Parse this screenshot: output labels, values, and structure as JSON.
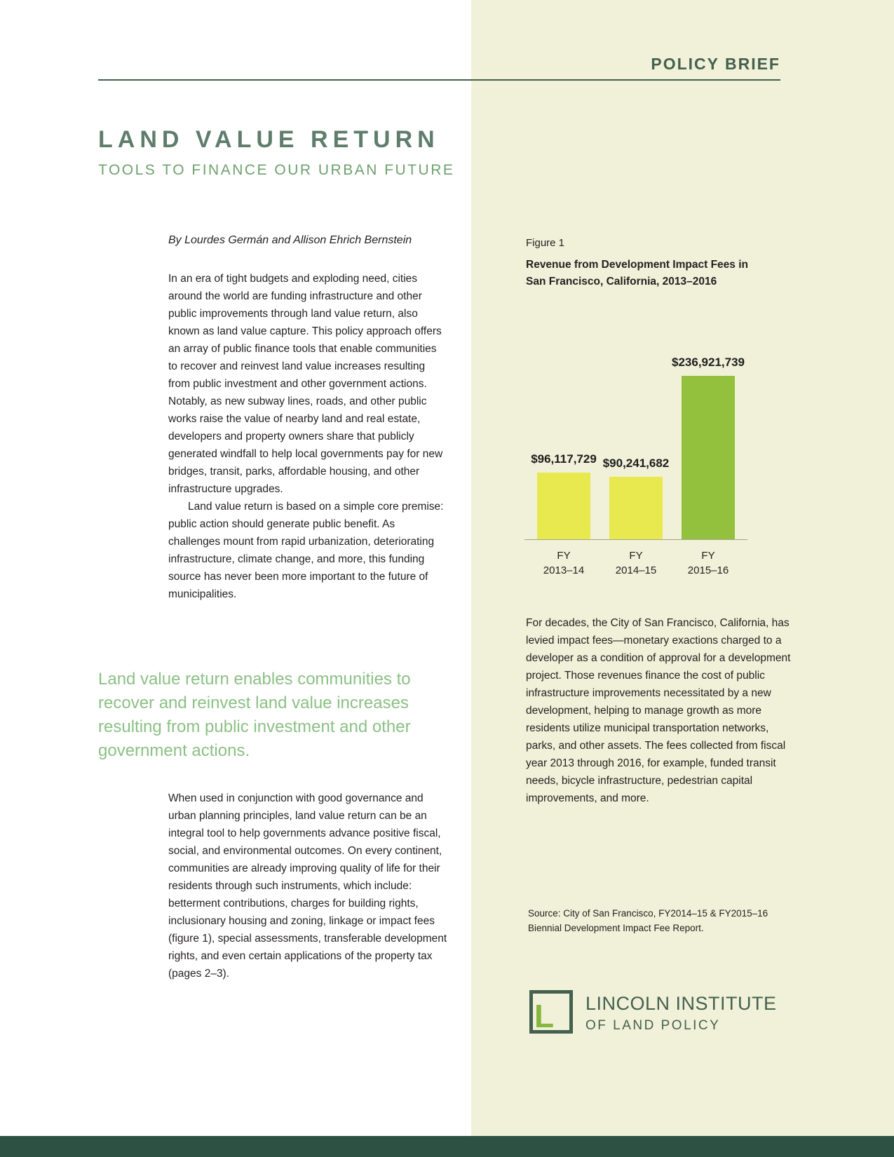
{
  "header": {
    "kicker": "POLICY BRIEF"
  },
  "title": {
    "main": "LAND VALUE RETURN",
    "subtitle": "TOOLS TO FINANCE OUR URBAN FUTURE"
  },
  "article": {
    "byline": "By Lourdes Germán and Allison Ehrich Bernstein",
    "para1": "In an era of tight budgets and exploding need, cities around the world are funding infrastructure and other public improvements through land value return, also known as land value capture. This policy approach offers an array of public finance tools that enable communities to recover and reinvest land value increases resulting from public investment and other government actions. Notably, as new subway lines, roads, and other public works raise the value of nearby land and real estate, developers and property owners share that publicly generated windfall to help local governments pay for new bridges, transit, parks, affordable housing, and other infrastructure upgrades.",
    "para2": "Land value return is based on a simple core premise: public action should generate public benefit. As challenges mount from rapid urbanization, deteriorating infrastructure, climate change, and more, this funding source has never been more important to the future of municipalities.",
    "pullquote": "Land value return enables communities to recover and reinvest land value increases resulting from public investment and other government actions.",
    "para3": "When used in conjunction with good governance and urban planning principles, land value return can be an integral tool to help governments advance positive fiscal, social, and environmental outcomes. On every continent, communities are already improving quality of life for their residents through such instruments, which include: betterment contributions, charges for building rights, inclusionary housing and zoning, linkage or impact fees (figure 1), special assessments, transferable development rights, and even certain applications of the property tax (pages 2–3)."
  },
  "figure": {
    "label": "Figure 1",
    "title": "Revenue from Development Impact Fees in San Francisco, California, 2013–2016",
    "body": "For decades, the City of San Francisco, California, has levied impact fees—monetary exactions charged to a developer as a condition of approval for a development project. Those revenues finance the cost of public infrastructure improvements necessitated by a new development, helping to manage growth as more residents utilize municipal transportation networks, parks, and other assets. The fees collected from fiscal year 2013 through 2016, for example, funded transit needs, bicycle infrastructure, pedestrian capital improvements, and more.",
    "source": "Source: City of San Francisco, FY2014–15 & FY2015–16 Biennial Development Impact Fee Report."
  },
  "chart_data": {
    "type": "bar",
    "title": "Revenue from Development Impact Fees in San Francisco, California, 2013–2016",
    "categories": [
      [
        "FY",
        "2013–14"
      ],
      [
        "FY",
        "2014–15"
      ],
      [
        "FY",
        "2015–16"
      ]
    ],
    "values": [
      96117729,
      90241682,
      236921739
    ],
    "labels": [
      "$96,117,729",
      "$90,241,682",
      "$236,921,739"
    ],
    "bar_colors": [
      "#e7e94e",
      "#e7e94e",
      "#94c13d"
    ],
    "xlabel": "",
    "ylabel": "",
    "ylim": [
      0,
      236921739
    ],
    "grid": false,
    "legend": false
  },
  "logo": {
    "line1": "LINCOLN INSTITUTE",
    "line2": "OF LAND POLICY"
  },
  "colors": {
    "panel_bg": "#f0f1d8",
    "dark_green": "#44604e",
    "title_green": "#5f7d6c",
    "subtitle_green": "#6fa16f",
    "pullquote_green": "#8bc184",
    "bar_yellow": "#e7e94e",
    "bar_green": "#94c13d",
    "logo_green": "#86b83f",
    "footer_green": "#2d5244"
  }
}
